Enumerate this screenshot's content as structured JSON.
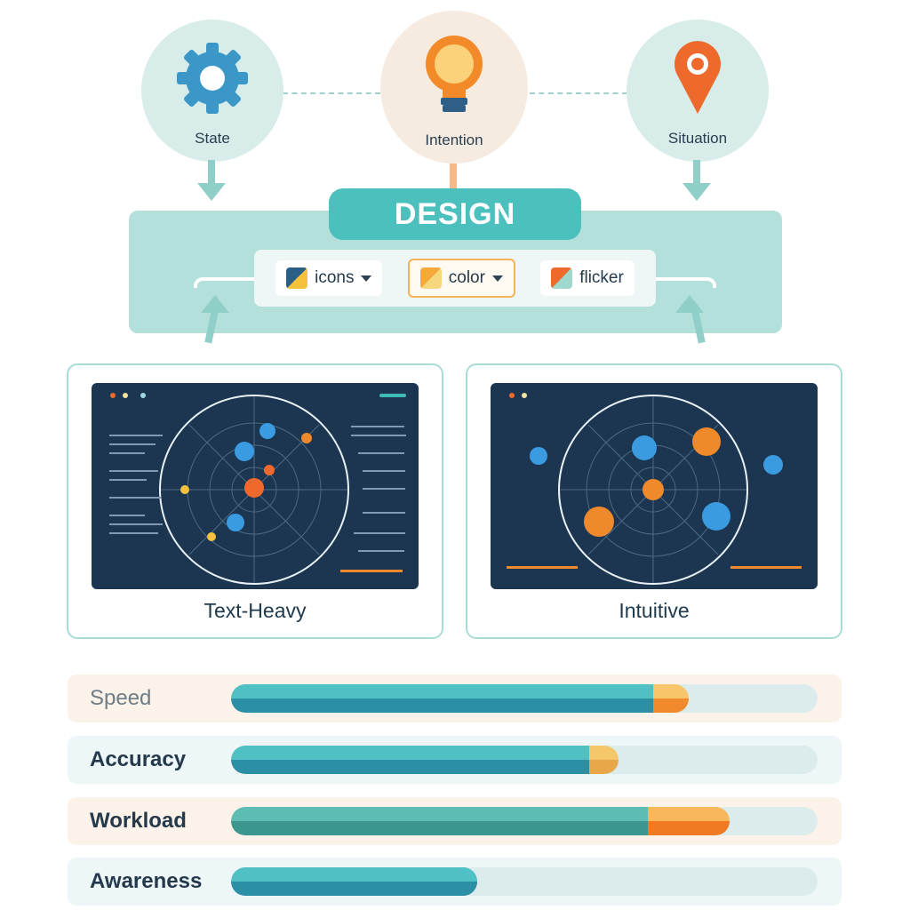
{
  "inputs": [
    {
      "label": "State",
      "icon": "gear-icon"
    },
    {
      "label": "Intention",
      "icon": "lightbulb-icon"
    },
    {
      "label": "Situation",
      "icon": "map-pin-icon"
    }
  ],
  "design": {
    "title": "DESIGN",
    "options": [
      {
        "label": "icons",
        "has_dropdown": true,
        "selected": false
      },
      {
        "label": "color",
        "has_dropdown": true,
        "selected": true
      },
      {
        "label": "flicker",
        "has_dropdown": false,
        "selected": false
      }
    ]
  },
  "panels": [
    {
      "label": "Text-Heavy"
    },
    {
      "label": "Intuitive"
    }
  ],
  "metrics": [
    {
      "label": "Speed",
      "teal_percent": 72,
      "total_percent": 78
    },
    {
      "label": "Accuracy",
      "teal_percent": 61,
      "total_percent": 66
    },
    {
      "label": "Workload",
      "teal_percent": 71,
      "total_percent": 85
    },
    {
      "label": "Awareness",
      "teal_percent": 42,
      "total_percent": 42
    }
  ],
  "colors": {
    "teal": "#4cc0bd",
    "orange": "#f08a2c",
    "navy": "#1c3550",
    "accent_yellow": "#f7c46c"
  }
}
